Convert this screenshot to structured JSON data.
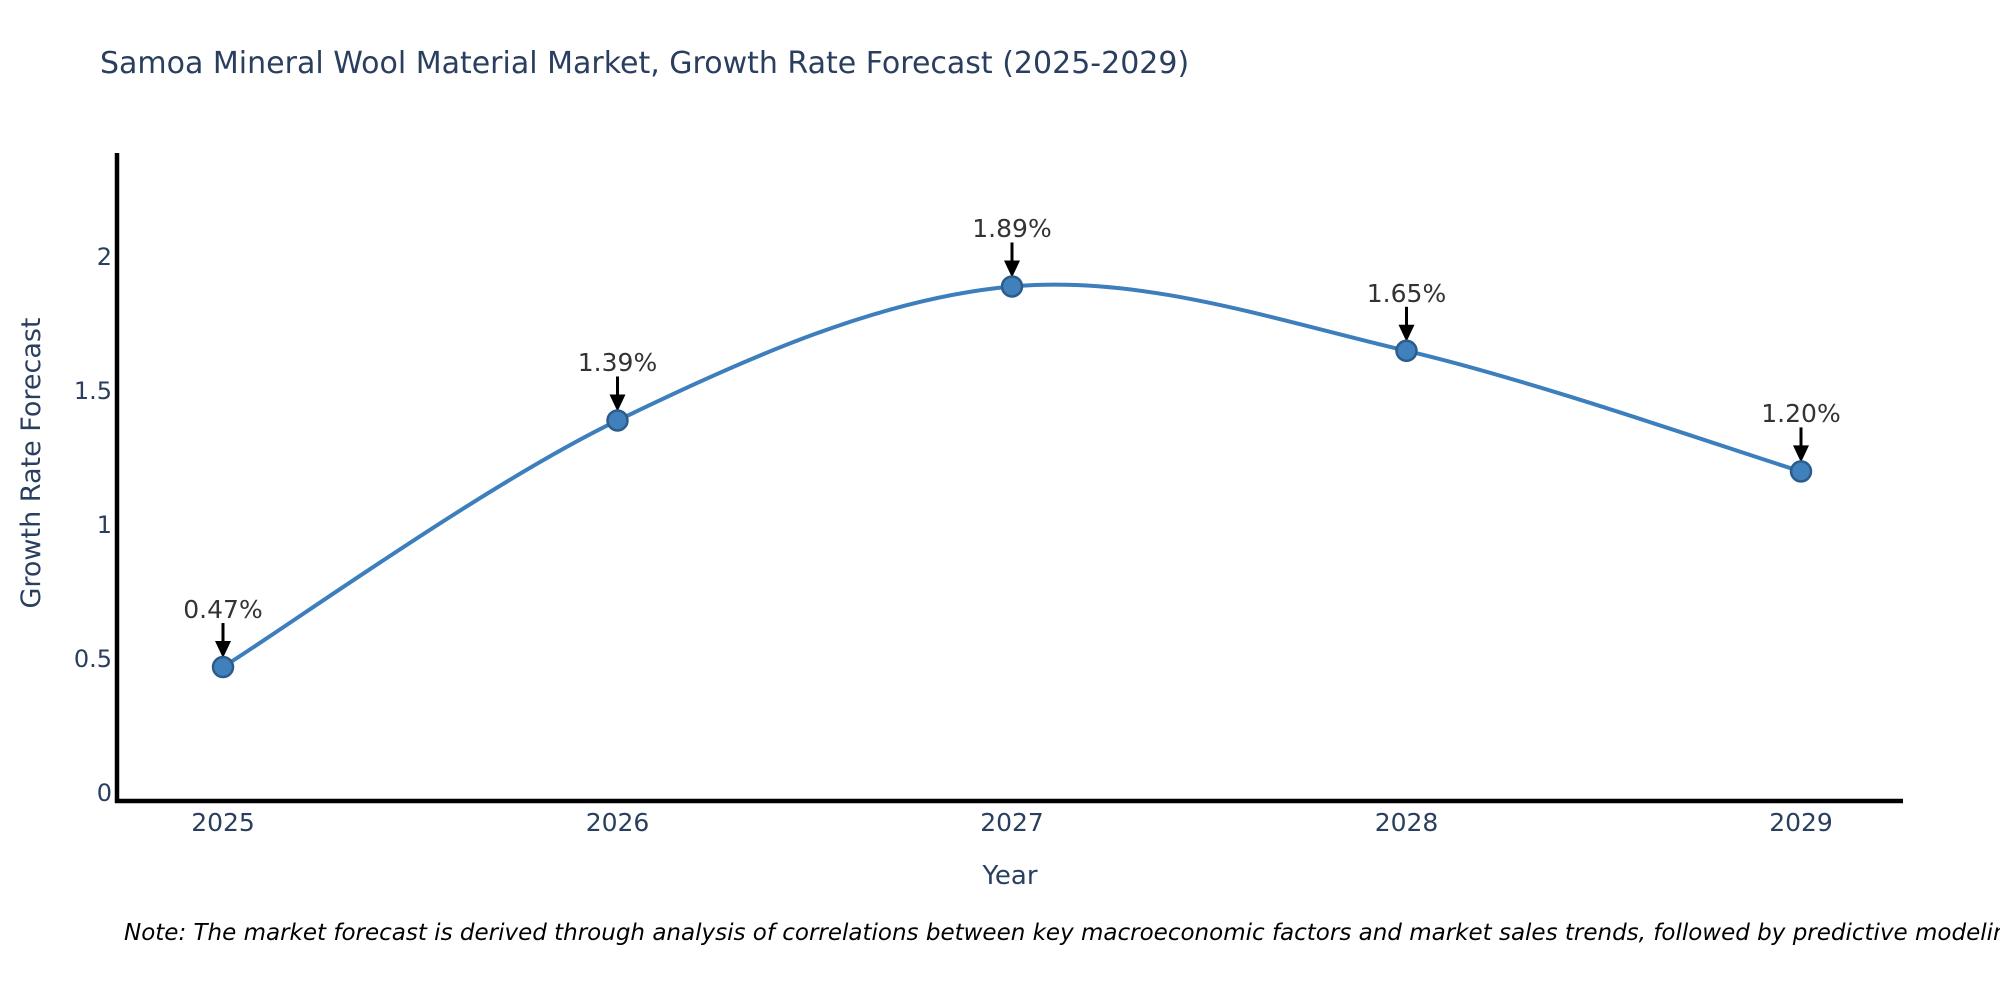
{
  "chart_data": {
    "type": "line",
    "title": "Samoa Mineral Wool Material Market, Growth Rate Forecast (2025-2029)",
    "xlabel": "Year",
    "ylabel": "Growth Rate Forecast",
    "categories": [
      "2025",
      "2026",
      "2027",
      "2028",
      "2029"
    ],
    "series": [
      {
        "name": "Growth Rate Forecast",
        "values": [
          0.47,
          1.39,
          1.89,
          1.65,
          1.2
        ],
        "point_labels": [
          "0.47%",
          "1.39%",
          "1.89%",
          "1.65%",
          "1.20%"
        ]
      }
    ],
    "yticks": [
      0,
      0.5,
      1,
      1.5,
      2
    ],
    "ytick_labels": [
      "0",
      "0.5",
      "1",
      "1.5",
      "2"
    ],
    "ylim": [
      -0.05,
      2.4
    ],
    "line_shape": "spline",
    "grid": false,
    "legend": "none",
    "annotation_style": "black-down-arrows",
    "colors": {
      "line": "#3d7ebd",
      "marker_fill": "#4080bd",
      "marker_edge": "#2b5c8a",
      "axis": "#000000",
      "title_text": "#2a3f5f",
      "tick_text": "#2a3f5f",
      "annotation_text": "#333333"
    },
    "note": "Note: The market forecast is derived through analysis of correlations between key macroeconomic factors and market sales trends, followed by predictive modeling to project future sales"
  }
}
